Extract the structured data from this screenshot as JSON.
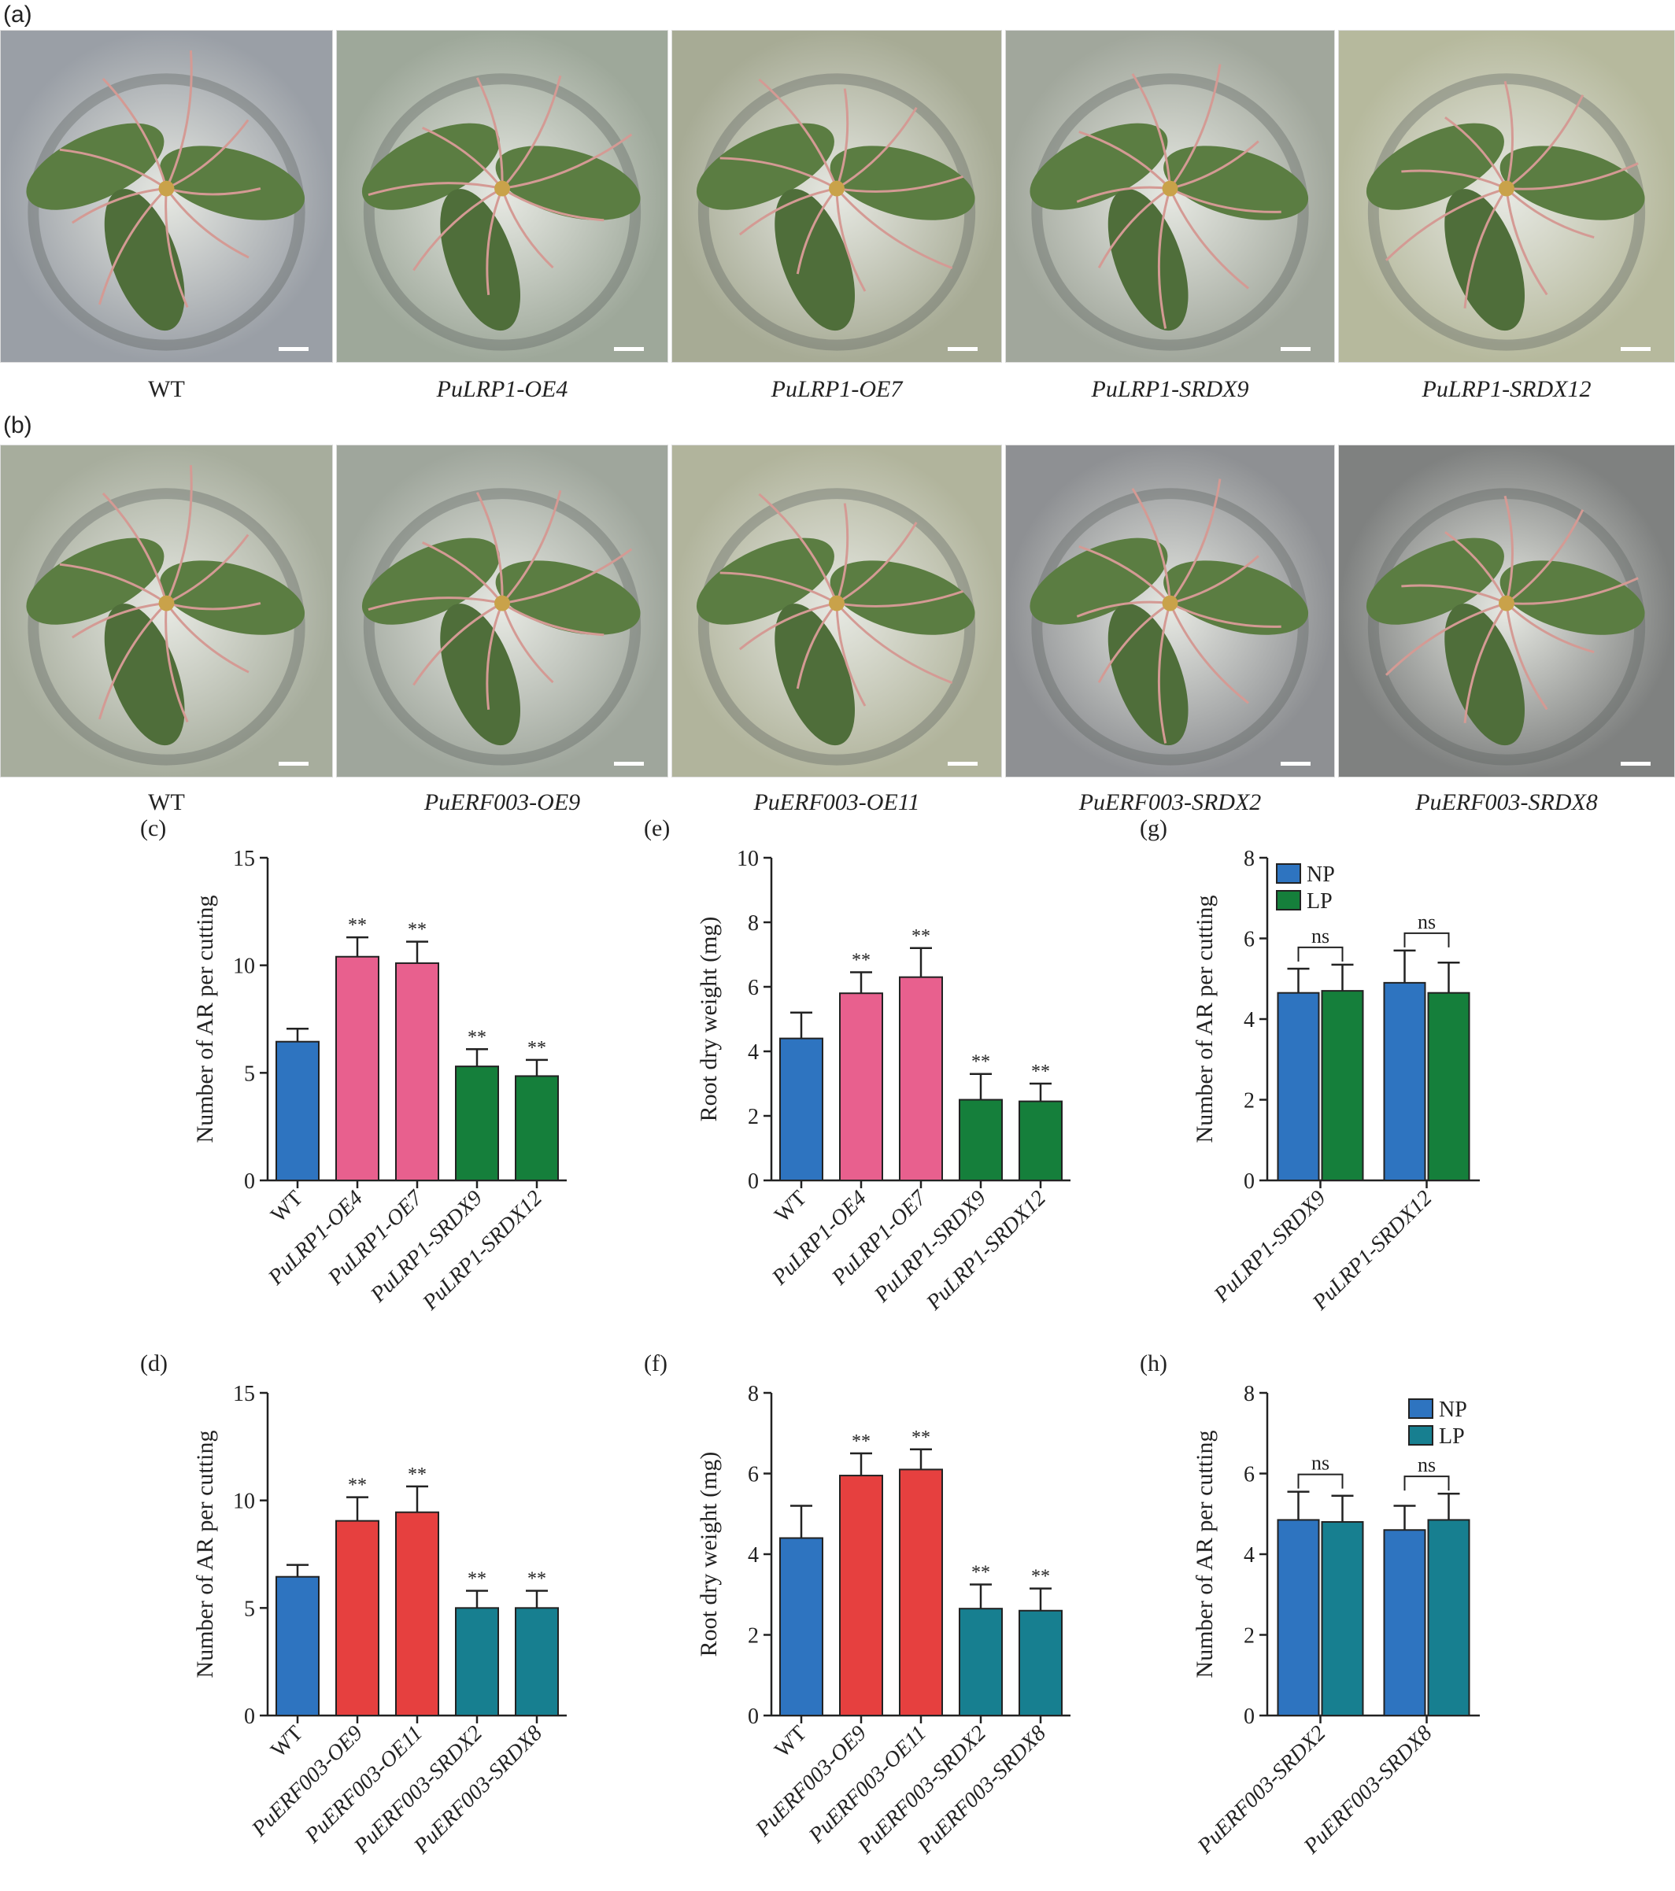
{
  "panels": {
    "a": "(a)",
    "b": "(b)"
  },
  "row_a": [
    {
      "label": "WT",
      "italic": false,
      "tint": "#9a9fa6"
    },
    {
      "label": "PuLRP1-OE4",
      "italic": true,
      "tint": "#9ea89a"
    },
    {
      "label": "PuLRP1-OE7",
      "italic": true,
      "tint": "#a7ab95"
    },
    {
      "label": "PuLRP1-SRDX9",
      "italic": true,
      "tint": "#a1a79c"
    },
    {
      "label": "PuLRP1-SRDX12",
      "italic": true,
      "tint": "#b6b99d"
    }
  ],
  "row_b": [
    {
      "label": "WT",
      "italic": false,
      "tint": "#a7ad9d"
    },
    {
      "label": "PuERF003-OE9",
      "italic": true,
      "tint": "#9fa69c"
    },
    {
      "label": "PuERF003-OE11",
      "italic": true,
      "tint": "#b1b49c"
    },
    {
      "label": "PuERF003-SRDX2",
      "italic": true,
      "tint": "#8e9093"
    },
    {
      "label": "PuERF003-SRDX8",
      "italic": true,
      "tint": "#7f8180"
    }
  ],
  "colors": {
    "wt": "#2e74c0",
    "pink": "#e8608e",
    "green": "#157f3b",
    "red": "#e6403f",
    "teal": "#177f90",
    "np": "#2e74c0"
  },
  "chart_data": [
    {
      "id": "c",
      "panel": "(c)",
      "type": "bar",
      "ylabel": "Number of AR per cutting",
      "ylim": [
        0,
        15
      ],
      "yticks": [
        0,
        5,
        10,
        15
      ],
      "categories": [
        "WT",
        "PuLRP1-OE4",
        "PuLRP1-OE7",
        "PuLRP1-SRDX9",
        "PuLRP1-SRDX12"
      ],
      "italic": [
        false,
        true,
        true,
        true,
        true
      ],
      "values": [
        6.45,
        10.4,
        10.1,
        5.3,
        4.85
      ],
      "errors": [
        0.6,
        0.9,
        1.0,
        0.8,
        0.75
      ],
      "marks": [
        "",
        "**",
        "**",
        "**",
        "**"
      ],
      "colors": [
        "wt",
        "pink",
        "pink",
        "green",
        "green"
      ]
    },
    {
      "id": "e",
      "panel": "(e)",
      "type": "bar",
      "ylabel": "Root dry weight (mg)",
      "ylim": [
        0,
        10
      ],
      "yticks": [
        0,
        2,
        4,
        6,
        8,
        10
      ],
      "categories": [
        "WT",
        "PuLRP1-OE4",
        "PuLRP1-OE7",
        "PuLRP1-SRDX9",
        "PuLRP1-SRDX12"
      ],
      "italic": [
        false,
        true,
        true,
        true,
        true
      ],
      "values": [
        4.4,
        5.8,
        6.3,
        2.5,
        2.45
      ],
      "errors": [
        0.8,
        0.65,
        0.9,
        0.8,
        0.55
      ],
      "marks": [
        "",
        "**",
        "**",
        "**",
        "**"
      ],
      "colors": [
        "wt",
        "pink",
        "pink",
        "green",
        "green"
      ]
    },
    {
      "id": "g",
      "panel": "(g)",
      "type": "bar",
      "ylabel": "Number of AR per cutting",
      "ylim": [
        0,
        8
      ],
      "yticks": [
        0,
        2,
        4,
        6,
        8
      ],
      "categories": [
        "PuLRP1-SRDX9",
        "PuLRP1-SRDX12"
      ],
      "italic": [
        true,
        true
      ],
      "series": [
        {
          "name": "NP",
          "values": [
            4.65,
            4.9
          ],
          "errors": [
            0.6,
            0.8
          ],
          "color": "np"
        },
        {
          "name": "LP",
          "values": [
            4.7,
            4.65
          ],
          "errors": [
            0.65,
            0.75
          ],
          "color": "green"
        }
      ],
      "sig": [
        "ns",
        "ns"
      ],
      "legend": "top-left"
    },
    {
      "id": "d",
      "panel": "(d)",
      "type": "bar",
      "ylabel": "Number of AR per cutting",
      "ylim": [
        0,
        15
      ],
      "yticks": [
        0,
        5,
        10,
        15
      ],
      "categories": [
        "WT",
        "PuERF003-OE9",
        "PuERF003-OE11",
        "PuERF003-SRDX2",
        "PuERF003-SRDX8"
      ],
      "italic": [
        false,
        true,
        true,
        true,
        true
      ],
      "values": [
        6.45,
        9.05,
        9.45,
        5.0,
        5.0
      ],
      "errors": [
        0.55,
        1.1,
        1.2,
        0.8,
        0.8
      ],
      "marks": [
        "",
        "**",
        "**",
        "**",
        "**"
      ],
      "colors": [
        "wt",
        "red",
        "red",
        "teal",
        "teal"
      ]
    },
    {
      "id": "f",
      "panel": "(f)",
      "type": "bar",
      "ylabel": "Root dry weight (mg)",
      "ylim": [
        0,
        8
      ],
      "yticks": [
        0,
        2,
        4,
        6,
        8
      ],
      "categories": [
        "WT",
        "PuERF003-OE9",
        "PuERF003-OE11",
        "PuERF003-SRDX2",
        "PuERF003-SRDX8"
      ],
      "italic": [
        false,
        true,
        true,
        true,
        true
      ],
      "values": [
        4.4,
        5.95,
        6.1,
        2.65,
        2.6
      ],
      "errors": [
        0.8,
        0.55,
        0.5,
        0.6,
        0.55
      ],
      "marks": [
        "",
        "**",
        "**",
        "**",
        "**"
      ],
      "colors": [
        "wt",
        "red",
        "red",
        "teal",
        "teal"
      ]
    },
    {
      "id": "h",
      "panel": "(h)",
      "type": "bar",
      "ylabel": "Number of AR per cutting",
      "ylim": [
        0,
        8
      ],
      "yticks": [
        0,
        2,
        4,
        6,
        8
      ],
      "categories": [
        "PuERF003-SRDX2",
        "PuERF003-SRDX8"
      ],
      "italic": [
        true,
        true
      ],
      "series": [
        {
          "name": "NP",
          "values": [
            4.85,
            4.6
          ],
          "errors": [
            0.7,
            0.6
          ],
          "color": "np"
        },
        {
          "name": "LP",
          "values": [
            4.8,
            4.85
          ],
          "errors": [
            0.65,
            0.65
          ],
          "color": "teal"
        }
      ],
      "sig": [
        "ns",
        "ns"
      ],
      "legend": "top-right"
    }
  ]
}
